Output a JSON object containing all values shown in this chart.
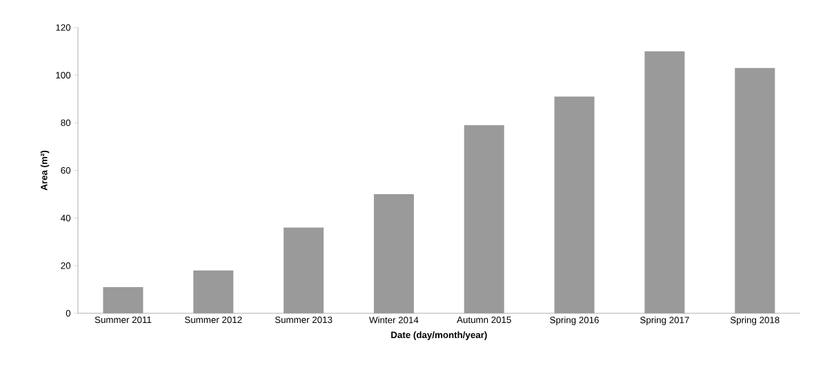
{
  "chart_data": {
    "type": "bar",
    "xlabel": "Date (day/month/year)",
    "ylabel": "Area (m²)",
    "categories": [
      "Summer 2011",
      "Summer 2012",
      "Summer 2013",
      "Winter 2014",
      "Autumn 2015",
      "Spring 2016",
      "Spring 2017",
      "Spring 2018"
    ],
    "values": [
      11,
      18,
      36,
      50,
      79,
      91,
      110,
      103
    ],
    "color": "#9a9a9a",
    "ylim": [
      0,
      120
    ],
    "yticks": [
      0,
      20,
      40,
      60,
      80,
      100,
      120
    ],
    "grid": false
  }
}
